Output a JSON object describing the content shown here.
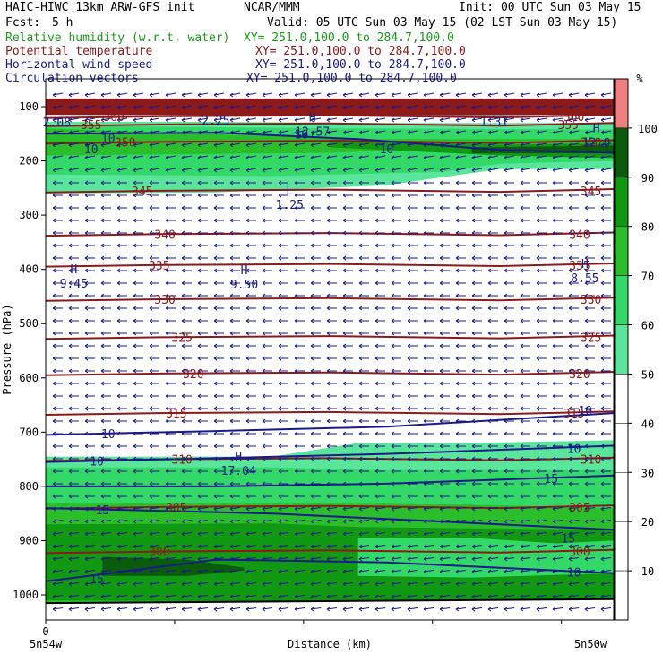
{
  "header": {
    "model": "HAIC-HIWC 13km ARW-GFS init",
    "center": "NCAR/MMM",
    "init": "Init: 00 UTC Sun 03 May 15",
    "fcst_label": "Fcst:",
    "fcst_value": "5 h",
    "valid": "Valid: 05 UTC Sun 03 May 15 (02 LST Sun 03 May 15)"
  },
  "fields": [
    {
      "name": "Relative humidity (w.r.t. water)",
      "xy": "XY= 251.0,100.0 to 284.7,100.0",
      "color": "#1a9a1a"
    },
    {
      "name": "Potential temperature",
      "xy": "XY= 251.0,100.0 to 284.7,100.0",
      "color": "#8b1a1a"
    },
    {
      "name": "Horizontal wind speed",
      "xy": "XY= 251.0,100.0 to 284.7,100.0",
      "color": "#1a1a8b"
    },
    {
      "name": "Circulation vectors",
      "xy": "XY= 251.0,100.0 to 284.7,100.0",
      "color": "#1a1a8b"
    }
  ],
  "chart_data": {
    "type": "heatmap",
    "ylabel": "Pressure (hPa)",
    "xlabel": "Distance (km)",
    "y_ticks": [
      100,
      200,
      300,
      400,
      500,
      600,
      700,
      800,
      900,
      1000
    ],
    "x_tick_labels": {
      "origin": "0",
      "left": "5n54w",
      "right": "5n50w"
    },
    "colorbar": {
      "unit": "%",
      "levels": [
        10,
        20,
        30,
        40,
        50,
        60,
        70,
        80,
        90,
        100
      ],
      "colors": [
        "#ffffff",
        "#ffffff",
        "#ffffff",
        "#ffffff",
        "#ffffff",
        "#59e69b",
        "#33d966",
        "#2abf2a",
        "#119911",
        "#0a5c0a",
        "#f08080"
      ]
    },
    "theta_contours": [
      {
        "value": 360,
        "labels": [
          {
            "text": "360"
          },
          {
            "text": "360"
          }
        ]
      },
      {
        "value": 355,
        "labels": [
          {
            "text": "355"
          },
          {
            "text": "355"
          }
        ]
      },
      {
        "value": 350,
        "labels": [
          {
            "text": "350"
          },
          {
            "text": "350"
          }
        ]
      },
      {
        "value": 345,
        "labels": [
          {
            "text": "345"
          },
          {
            "text": "345"
          }
        ]
      },
      {
        "value": 340,
        "labels": [
          {
            "text": "340"
          },
          {
            "text": "340"
          }
        ]
      },
      {
        "value": 335,
        "labels": [
          {
            "text": "335"
          },
          {
            "text": "335"
          }
        ]
      },
      {
        "value": 330,
        "labels": [
          {
            "text": "330"
          },
          {
            "text": "330"
          }
        ]
      },
      {
        "value": 325,
        "labels": [
          {
            "text": "325"
          },
          {
            "text": "325"
          }
        ]
      },
      {
        "value": 320,
        "labels": [
          {
            "text": "320"
          },
          {
            "text": "320"
          }
        ]
      },
      {
        "value": 315,
        "labels": [
          {
            "text": "315"
          },
          {
            "text": "315"
          }
        ]
      },
      {
        "value": 310,
        "labels": [
          {
            "text": "310"
          },
          {
            "text": "310"
          }
        ]
      },
      {
        "value": 305,
        "labels": [
          {
            "text": "305"
          },
          {
            "text": "305"
          }
        ]
      },
      {
        "value": 300,
        "labels": [
          {
            "text": "300"
          },
          {
            "text": "300"
          }
        ]
      }
    ],
    "wind_speed_labels": [
      "10",
      "10",
      "10",
      "10",
      "10",
      "10",
      "15",
      "15",
      "15",
      "15",
      "10",
      "10",
      "10"
    ],
    "extrema": [
      {
        "type": "H",
        "value": "12.57"
      },
      {
        "type": "H",
        "value": "12.0"
      },
      {
        "type": "L",
        "value": "1.25"
      },
      {
        "type": "H",
        "value": "9.45"
      },
      {
        "type": "H",
        "value": "9.50"
      },
      {
        "type": "H",
        "value": "8.55"
      },
      {
        "type": "H",
        "value": "17.04"
      },
      {
        "type": "",
        "value": "2.08"
      },
      {
        "type": "",
        "value": "2.25"
      },
      {
        "type": "",
        "value": "1.31"
      }
    ]
  }
}
